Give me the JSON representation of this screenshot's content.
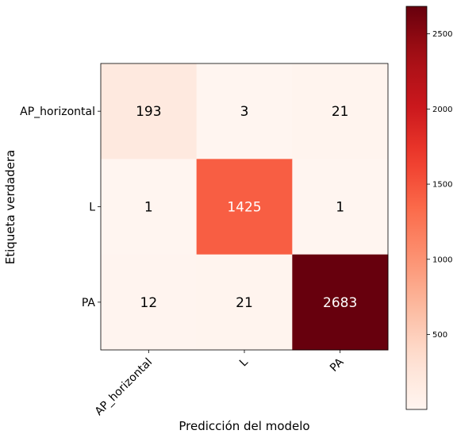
{
  "chart_data": {
    "type": "heatmap",
    "title": "",
    "xlabel": "Predicción del modelo",
    "ylabel": "Etiqueta verdadera",
    "x_categories": [
      "AP_horizontal",
      "L",
      "PA"
    ],
    "y_categories": [
      "AP_horizontal",
      "L",
      "PA"
    ],
    "matrix": [
      [
        193,
        3,
        21
      ],
      [
        1,
        1425,
        1
      ],
      [
        12,
        21,
        2683
      ]
    ],
    "colormap": "Reds",
    "colors": {
      "low": "#fff5f0",
      "high": "#67000d",
      "text_dark": "#000000",
      "text_light": "#ffffff"
    },
    "colorbar": {
      "range": [
        1,
        2683
      ],
      "ticks": [
        500,
        1000,
        1500,
        2000,
        2500
      ]
    }
  }
}
